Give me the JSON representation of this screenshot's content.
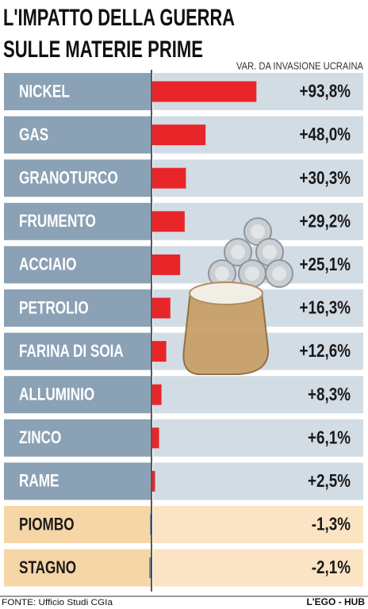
{
  "chart_data": {
    "type": "bar",
    "orientation": "horizontal",
    "title": [
      "L'IMPATTO DELLA GUERRA",
      "SULLE MATERIE PRIME"
    ],
    "subtitle": "VAR. DA INVASIONE UCRAINA",
    "categories": [
      "NICKEL",
      "GAS",
      "GRANOTURCO",
      "FRUMENTO",
      "ACCIAIO",
      "PETROLIO",
      "FARINA DI SOIA",
      "ALLUMINIO",
      "ZINCO",
      "RAME",
      "PIOMBO",
      "STAGNO"
    ],
    "values": [
      93.8,
      48.0,
      30.3,
      29.2,
      25.1,
      16.3,
      12.6,
      8.3,
      6.1,
      2.5,
      -1.3,
      -2.1
    ],
    "value_labels": [
      "+93,8%",
      "+48,0%",
      "+30,3%",
      "+29,2%",
      "+25,1%",
      "+16,3%",
      "+12,6%",
      "+8,3%",
      "+6,1%",
      "+2,5%",
      "-1,3%",
      "-2,1%"
    ],
    "color": "#e8262a",
    "negative_color": "#7d8a96",
    "source": "FONTE: Ufficio Studi CGIa",
    "credit": "L'EGO - HUB"
  }
}
